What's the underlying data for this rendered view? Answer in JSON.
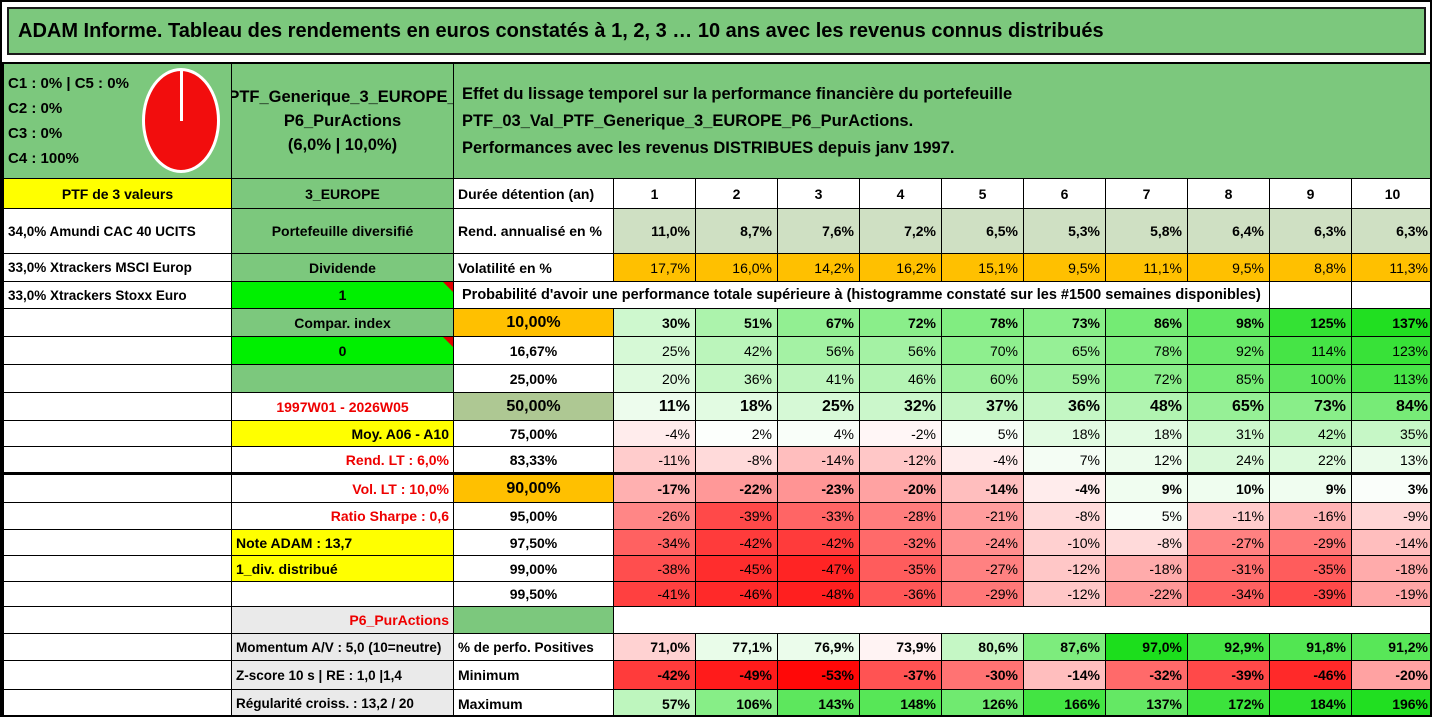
{
  "page": {
    "title": "ADAM Informe. Tableau des rendements en euros constatés à 1, 2, 3 … 10 ans avec les revenus connus distribués"
  },
  "info": {
    "allocation_lines": [
      "C1 : 0% | C5 : 0%",
      "C2 : 0%",
      "C3 : 0%",
      "C4 : 100%"
    ],
    "portfolio_name_lines": [
      "PTF_Generique_3_EUROPE_",
      "P6_PurActions",
      "(6,0% | 10,0%)"
    ],
    "description_lines": [
      "Effet du lissage temporel sur la performance financière du portefeuille PTF_03_Val_PTF_Generique_3_EUROPE_P6_PurActions.",
      "Performances avec les revenus DISTRIBUES depuis janv 1997."
    ]
  },
  "holdings": {
    "header": "PTF de 3 valeurs",
    "items": [
      "34,0% Amundi CAC 40 UCITS",
      "33,0% Xtrackers MSCI Europ",
      "33,0% Xtrackers Stoxx Euro"
    ]
  },
  "side": {
    "europe": "3_EUROPE",
    "diversifie": "Portefeuille diversifié",
    "dividende": "Dividende",
    "one": "1",
    "compar": "Compar. index",
    "zero": "0",
    "period": "1997W01 - 2026W05",
    "moy": "Moy. A06 - A10",
    "rend_lt": "Rend. LT : 6,0%",
    "vol_lt": "Vol. LT : 10,0%",
    "sharpe": "Ratio Sharpe : 0,6",
    "note_adam": "Note ADAM : 13,7",
    "div_dist": "1_div. distribué",
    "p6": "P6_PurActions",
    "momentum": "Momentum A/V : 5,0 (10=neutre)",
    "zscore": "Z-score 10 s | RE : 1,0 |1,4",
    "regularite": "Régularité croiss. : 13,2 / 20"
  },
  "table": {
    "duration_label": "Durée détention (an)",
    "years": [
      "1",
      "2",
      "3",
      "4",
      "5",
      "6",
      "7",
      "8",
      "9",
      "10"
    ],
    "rend": {
      "label": "Rend. annualisé en %",
      "values": [
        "11,0%",
        "8,7%",
        "7,6%",
        "7,2%",
        "6,5%",
        "5,3%",
        "5,8%",
        "6,4%",
        "6,3%",
        "6,3%"
      ]
    },
    "vol": {
      "label": "Volatilité en %",
      "values": [
        "17,7%",
        "16,0%",
        "14,2%",
        "16,2%",
        "15,1%",
        "9,5%",
        "11,1%",
        "9,5%",
        "8,8%",
        "11,3%"
      ]
    },
    "prob_header": "Probabilité d'avoir une performance totale supérieure à (histogramme constaté sur les #1500 semaines disponibles)",
    "prob_rows": [
      {
        "threshold": "10,00%",
        "values": [
          "30%",
          "51%",
          "67%",
          "72%",
          "78%",
          "73%",
          "86%",
          "98%",
          "125%",
          "137%"
        ]
      },
      {
        "threshold": "16,67%",
        "values": [
          "25%",
          "42%",
          "56%",
          "56%",
          "70%",
          "65%",
          "78%",
          "92%",
          "114%",
          "123%"
        ]
      },
      {
        "threshold": "25,00%",
        "values": [
          "20%",
          "36%",
          "41%",
          "46%",
          "60%",
          "59%",
          "72%",
          "85%",
          "100%",
          "113%"
        ]
      },
      {
        "threshold": "50,00%",
        "values": [
          "11%",
          "18%",
          "25%",
          "32%",
          "37%",
          "36%",
          "48%",
          "65%",
          "73%",
          "84%"
        ]
      },
      {
        "threshold": "75,00%",
        "values": [
          "-4%",
          "2%",
          "4%",
          "-2%",
          "5%",
          "18%",
          "18%",
          "31%",
          "42%",
          "35%"
        ]
      },
      {
        "threshold": "83,33%",
        "values": [
          "-11%",
          "-8%",
          "-14%",
          "-12%",
          "-4%",
          "7%",
          "12%",
          "24%",
          "22%",
          "13%"
        ]
      },
      {
        "threshold": "90,00%",
        "values": [
          "-17%",
          "-22%",
          "-23%",
          "-20%",
          "-14%",
          "-4%",
          "9%",
          "10%",
          "9%",
          "3%"
        ]
      },
      {
        "threshold": "95,00%",
        "values": [
          "-26%",
          "-39%",
          "-33%",
          "-28%",
          "-21%",
          "-8%",
          "5%",
          "-11%",
          "-16%",
          "-9%"
        ]
      },
      {
        "threshold": "97,50%",
        "values": [
          "-34%",
          "-42%",
          "-42%",
          "-32%",
          "-24%",
          "-10%",
          "-8%",
          "-27%",
          "-29%",
          "-14%"
        ]
      },
      {
        "threshold": "99,00%",
        "values": [
          "-38%",
          "-45%",
          "-47%",
          "-35%",
          "-27%",
          "-12%",
          "-18%",
          "-31%",
          "-35%",
          "-18%"
        ]
      },
      {
        "threshold": "99,50%",
        "values": [
          "-41%",
          "-46%",
          "-48%",
          "-36%",
          "-29%",
          "-12%",
          "-22%",
          "-34%",
          "-39%",
          "-19%"
        ]
      }
    ],
    "positive": {
      "label": "% de perfo. Positives",
      "values": [
        "71,0%",
        "77,1%",
        "76,9%",
        "73,9%",
        "80,6%",
        "87,6%",
        "97,0%",
        "92,9%",
        "91,8%",
        "91,2%"
      ]
    },
    "minimum": {
      "label": "Minimum",
      "values": [
        "-42%",
        "-49%",
        "-53%",
        "-37%",
        "-30%",
        "-14%",
        "-32%",
        "-39%",
        "-46%",
        "-20%"
      ]
    },
    "maximum": {
      "label": "Maximum",
      "values": [
        "57%",
        "106%",
        "143%",
        "148%",
        "126%",
        "166%",
        "137%",
        "172%",
        "184%",
        "196%"
      ]
    }
  },
  "colors": {
    "theme_green": "#7cc87d",
    "bright_green": "#00f000",
    "orange": "#ffc000",
    "yellow": "#ffff00",
    "sage_green": "#cfe0c3",
    "mid_sage": "#aec893",
    "label_gray": "#eaeaea",
    "red_text": "#ee0000",
    "pie_red": "#f20d0d"
  },
  "chart_data": {
    "type": "pie",
    "labels": [
      "C1",
      "C2",
      "C3",
      "C4",
      "C5"
    ],
    "values": [
      0,
      0,
      0,
      100,
      0
    ],
    "slice_color": "#f20d0d"
  }
}
